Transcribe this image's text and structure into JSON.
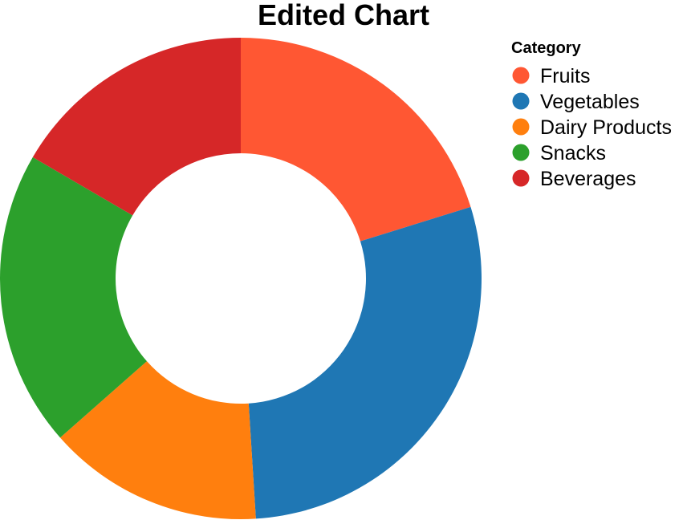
{
  "chart_data": {
    "type": "pie",
    "title": "Edited Chart",
    "legend_title": "Category",
    "legend_position": "top-right",
    "inner_radius_ratio": 0.52,
    "categories": [
      "Fruits",
      "Vegetables",
      "Dairy Products",
      "Snacks",
      "Beverages"
    ],
    "values": [
      20.2,
      28.8,
      14.5,
      19.9,
      16.6
    ],
    "colors": [
      "#ff5733",
      "#1f77b4",
      "#ff7f0e",
      "#2ca02c",
      "#d62728"
    ]
  }
}
